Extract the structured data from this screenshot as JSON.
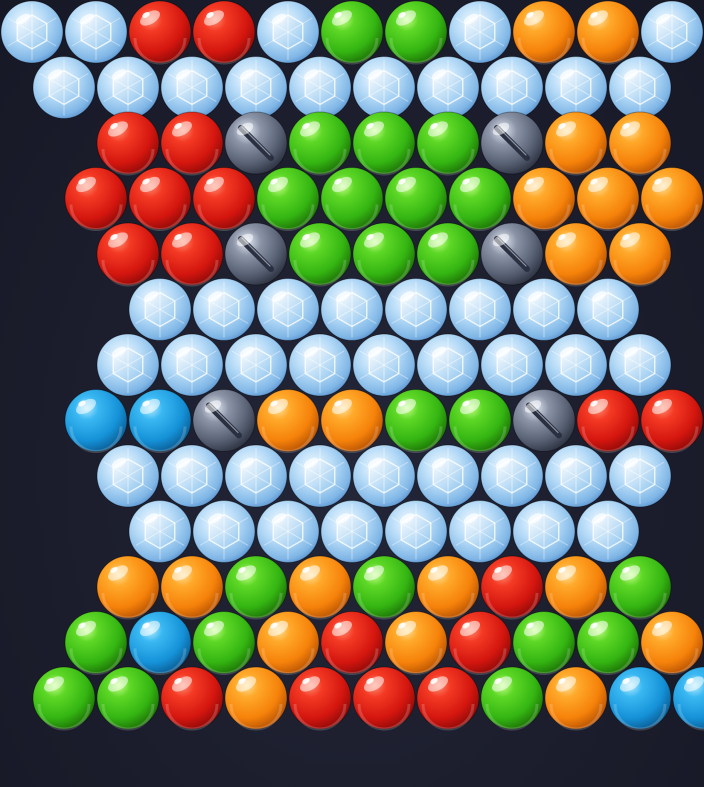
{
  "game": {
    "type": "bubble-shooter",
    "bubble_kinds": {
      "D": "diamond",
      "R": "red",
      "G": "green",
      "O": "orange",
      "B": "blue",
      "M": "metal-blocker"
    },
    "colors": {
      "background": "#1b1d2c",
      "red": "#e8231c",
      "green": "#3cc417",
      "orange": "#fb8a0d",
      "blue": "#1e9fe0",
      "metal": "#6b7588",
      "diamond": "#a9d3f5"
    },
    "rows": [
      {
        "offset": false,
        "cells": [
          "D",
          "D",
          "R",
          "R",
          "D",
          "G",
          "G",
          "D",
          "O",
          "O",
          "D"
        ]
      },
      {
        "offset": true,
        "cells": [
          "D",
          "D",
          "D",
          "D",
          "D",
          "D",
          "D",
          "D",
          "D",
          "D"
        ]
      },
      {
        "offset": true,
        "start": 1,
        "cells": [
          "R",
          "R",
          "M",
          "G",
          "G",
          "G",
          "M",
          "O",
          "O"
        ]
      },
      {
        "offset": false,
        "start": 1,
        "cells": [
          "R",
          "R",
          "R",
          "G",
          "G",
          "G",
          "G",
          "O",
          "O",
          "O"
        ]
      },
      {
        "offset": true,
        "start": 1,
        "cells": [
          "R",
          "R",
          "M",
          "G",
          "G",
          "G",
          "M",
          "O",
          "O"
        ]
      },
      {
        "offset": false,
        "start": 2,
        "cells": [
          "D",
          "D",
          "D",
          "D",
          "D",
          "D",
          "D",
          "D"
        ]
      },
      {
        "offset": true,
        "start": 1,
        "cells": [
          "D",
          "D",
          "D",
          "D",
          "D",
          "D",
          "D",
          "D",
          "D"
        ]
      },
      {
        "offset": false,
        "start": 1,
        "cells": [
          "B",
          "B",
          "M",
          "O",
          "O",
          "G",
          "G",
          "M",
          "R",
          "R"
        ]
      },
      {
        "offset": true,
        "start": 1,
        "cells": [
          "D",
          "D",
          "D",
          "D",
          "D",
          "D",
          "D",
          "D",
          "D"
        ]
      },
      {
        "offset": false,
        "start": 2,
        "cells": [
          "D",
          "D",
          "D",
          "D",
          "D",
          "D",
          "D",
          "D"
        ]
      },
      {
        "offset": true,
        "start": 1,
        "cells": [
          "O",
          "O",
          "G",
          "O",
          "G",
          "O",
          "R",
          "O",
          "G"
        ]
      },
      {
        "offset": false,
        "start": 1,
        "cells": [
          "G",
          "B",
          "G",
          "O",
          "R",
          "O",
          "R",
          "G",
          "G",
          "O"
        ]
      },
      {
        "offset": true,
        "start": 0,
        "cells": [
          "G",
          "G",
          "R",
          "O",
          "R",
          "R",
          "R",
          "G",
          "O",
          "B",
          "B"
        ]
      }
    ]
  }
}
